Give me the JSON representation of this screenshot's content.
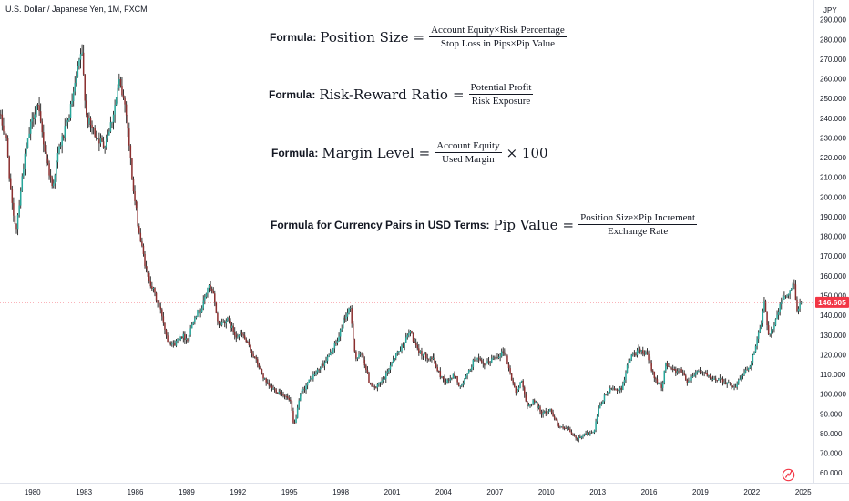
{
  "symbol_title": "U.S. Dollar / Japanese Yen, 1M, FXCM",
  "colors": {
    "up": "#26a69a",
    "down": "#8b2e2e",
    "candle": "#1f1f1f",
    "price_line": "#f23645",
    "price_badge": "#f23645",
    "axis_text": "#131722"
  },
  "formulas": [
    {
      "label": "Formula:",
      "lhs": "Position Size",
      "eq": "=",
      "numerator": "Account Equity×Risk Percentage",
      "denominator": "Stop Loss in Pips×Pip Value",
      "tail": ""
    },
    {
      "label": "Formula:",
      "lhs": "Risk-Reward Ratio",
      "eq": "=",
      "numerator": "Potential Profit",
      "denominator": "Risk Exposure",
      "tail": ""
    },
    {
      "label": "Formula:",
      "lhs": "Margin Level",
      "eq": "=",
      "numerator": "Account Equity",
      "denominator": "Used Margin",
      "tail": "× 100"
    },
    {
      "label": "Formula for Currency Pairs in USD Terms:",
      "lhs": "Pip Value",
      "eq": "=",
      "numerator": "Position Size×Pip Increment",
      "denominator": "Exchange Rate",
      "tail": ""
    }
  ],
  "logo_icon": "tradingview-logo-icon",
  "chart_data": {
    "type": "candlestick",
    "title": "U.S. Dollar / Japanese Yen, 1M, FXCM",
    "ylabel": "JPY",
    "ylim": [
      55,
      300
    ],
    "xlim": [
      1978.1,
      2025.6
    ],
    "y_ticks": [
      "290.000",
      "280.000",
      "270.000",
      "260.000",
      "250.000",
      "240.000",
      "230.000",
      "220.000",
      "210.000",
      "200.000",
      "190.000",
      "180.000",
      "170.000",
      "160.000",
      "150.000",
      "140.000",
      "130.000",
      "120.000",
      "110.000",
      "100.000",
      "90.000",
      "80.000",
      "70.000",
      "60.000"
    ],
    "x_ticks": [
      "1980",
      "1983",
      "1986",
      "1989",
      "1992",
      "1995",
      "1998",
      "2001",
      "2004",
      "2007",
      "2010",
      "2013",
      "2016",
      "2019",
      "2022",
      "2025"
    ],
    "current_price": 146.605,
    "current_price_label": "146.605",
    "grid": false,
    "path": [
      [
        1978.1,
        242
      ],
      [
        1978.5,
        230
      ],
      [
        1978.9,
        190
      ],
      [
        1979.1,
        185
      ],
      [
        1979.5,
        215
      ],
      [
        1979.9,
        235
      ],
      [
        1980.3,
        248
      ],
      [
        1980.8,
        222
      ],
      [
        1981.2,
        205
      ],
      [
        1981.6,
        225
      ],
      [
        1982.1,
        238
      ],
      [
        1982.5,
        255
      ],
      [
        1982.9,
        275
      ],
      [
        1983.2,
        240
      ],
      [
        1983.7,
        232
      ],
      [
        1984.2,
        226
      ],
      [
        1984.7,
        240
      ],
      [
        1985.1,
        258
      ],
      [
        1985.5,
        245
      ],
      [
        1985.9,
        205
      ],
      [
        1986.3,
        180
      ],
      [
        1986.7,
        162
      ],
      [
        1987.2,
        150
      ],
      [
        1987.6,
        140
      ],
      [
        1987.9,
        128
      ],
      [
        1988.3,
        125
      ],
      [
        1988.7,
        130
      ],
      [
        1989.1,
        128
      ],
      [
        1989.5,
        140
      ],
      [
        1989.9,
        143
      ],
      [
        1990.3,
        155
      ],
      [
        1990.6,
        150
      ],
      [
        1990.9,
        135
      ],
      [
        1991.4,
        138
      ],
      [
        1991.9,
        130
      ],
      [
        1992.3,
        130
      ],
      [
        1992.8,
        122
      ],
      [
        1993.2,
        115
      ],
      [
        1993.7,
        105
      ],
      [
        1994.2,
        102
      ],
      [
        1994.7,
        100
      ],
      [
        1995.1,
        96
      ],
      [
        1995.3,
        83
      ],
      [
        1995.7,
        100
      ],
      [
        1996.3,
        108
      ],
      [
        1996.9,
        114
      ],
      [
        1997.4,
        120
      ],
      [
        1997.9,
        128
      ],
      [
        1998.2,
        138
      ],
      [
        1998.6,
        143
      ],
      [
        1998.9,
        118
      ],
      [
        1999.3,
        120
      ],
      [
        1999.7,
        106
      ],
      [
        2000.1,
        103
      ],
      [
        2000.6,
        108
      ],
      [
        2001.1,
        118
      ],
      [
        2001.6,
        124
      ],
      [
        2002.1,
        132
      ],
      [
        2002.5,
        122
      ],
      [
        2002.9,
        120
      ],
      [
        2003.4,
        118
      ],
      [
        2003.8,
        110
      ],
      [
        2004.2,
        106
      ],
      [
        2004.7,
        110
      ],
      [
        2005.0,
        103
      ],
      [
        2005.5,
        111
      ],
      [
        2005.9,
        119
      ],
      [
        2006.4,
        114
      ],
      [
        2006.9,
        118
      ],
      [
        2007.3,
        120
      ],
      [
        2007.6,
        122
      ],
      [
        2007.9,
        111
      ],
      [
        2008.3,
        100
      ],
      [
        2008.6,
        108
      ],
      [
        2008.9,
        93
      ],
      [
        2009.3,
        97
      ],
      [
        2009.8,
        90
      ],
      [
        2010.3,
        92
      ],
      [
        2010.8,
        83
      ],
      [
        2011.3,
        82
      ],
      [
        2011.8,
        77
      ],
      [
        2012.3,
        80
      ],
      [
        2012.8,
        80
      ],
      [
        2013.1,
        92
      ],
      [
        2013.5,
        100
      ],
      [
        2013.9,
        103
      ],
      [
        2014.4,
        102
      ],
      [
        2014.9,
        118
      ],
      [
        2015.4,
        122
      ],
      [
        2015.9,
        120
      ],
      [
        2016.4,
        108
      ],
      [
        2016.8,
        102
      ],
      [
        2017.0,
        116
      ],
      [
        2017.5,
        112
      ],
      [
        2017.9,
        112
      ],
      [
        2018.3,
        106
      ],
      [
        2018.8,
        112
      ],
      [
        2019.2,
        111
      ],
      [
        2019.7,
        107
      ],
      [
        2020.2,
        108
      ],
      [
        2020.7,
        105
      ],
      [
        2021.1,
        104
      ],
      [
        2021.5,
        110
      ],
      [
        2021.9,
        114
      ],
      [
        2022.2,
        122
      ],
      [
        2022.6,
        136
      ],
      [
        2022.8,
        148
      ],
      [
        2023.0,
        130
      ],
      [
        2023.3,
        134
      ],
      [
        2023.6,
        142
      ],
      [
        2023.9,
        150
      ],
      [
        2024.2,
        150
      ],
      [
        2024.5,
        157
      ],
      [
        2024.7,
        142
      ],
      [
        2024.9,
        146.6
      ]
    ]
  }
}
